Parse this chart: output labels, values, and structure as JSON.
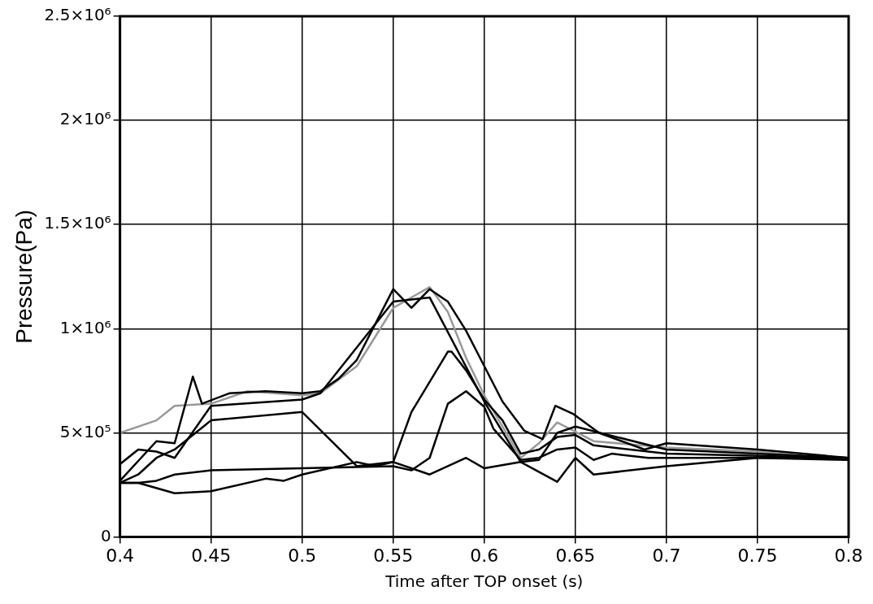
{
  "chart_data": {
    "type": "line",
    "xlabel": "Time after TOP onset (s)",
    "ylabel": "Pressure(Pa)",
    "xlim": [
      0.4,
      0.8
    ],
    "xticks": [
      0.4,
      0.45,
      0.5,
      0.55,
      0.6,
      0.65,
      0.7,
      0.75,
      0.8
    ],
    "ylim": [
      0,
      2500000
    ],
    "yticks": [
      {
        "value": 0,
        "label": "0"
      },
      {
        "value": 500000,
        "label": "5×10⁵"
      },
      {
        "value": 1000000,
        "label": "1×10⁶"
      },
      {
        "value": 1500000,
        "label": "1.5×10⁶"
      },
      {
        "value": 2000000,
        "label": "2×10⁶"
      },
      {
        "value": 2500000,
        "label": "2.5×10⁶"
      }
    ],
    "grid": true,
    "legend": false,
    "marker": "none",
    "line_style": "solid",
    "series": [
      {
        "color": "#000000",
        "x": [
          0.4,
          0.41,
          0.43,
          0.45,
          0.48,
          0.49,
          0.5,
          0.53,
          0.54,
          0.55,
          0.57,
          0.59,
          0.6,
          0.62,
          0.64,
          0.65,
          0.66,
          0.69,
          0.7,
          0.75,
          0.8
        ],
        "values": [
          260000,
          260000,
          210000,
          220000,
          280000,
          270000,
          300000,
          360000,
          340000,
          360000,
          300000,
          380000,
          330000,
          360000,
          265000,
          380000,
          300000,
          330000,
          340000,
          380000,
          380000
        ]
      },
      {
        "color": "#000000",
        "x": [
          0.4,
          0.41,
          0.42,
          0.43,
          0.45,
          0.5,
          0.55,
          0.56,
          0.57,
          0.58,
          0.59,
          0.6,
          0.605,
          0.62,
          0.63,
          0.64,
          0.65,
          0.66,
          0.67,
          0.69,
          0.75,
          0.8
        ],
        "values": [
          260000,
          260000,
          270000,
          300000,
          320000,
          330000,
          340000,
          320000,
          380000,
          640000,
          700000,
          625000,
          520000,
          370000,
          380000,
          420000,
          430000,
          370000,
          400000,
          380000,
          380000,
          370000
        ]
      },
      {
        "color": "#000000",
        "x": [
          0.4,
          0.41,
          0.42,
          0.43,
          0.45,
          0.5,
          0.53,
          0.55,
          0.56,
          0.58,
          0.582,
          0.59,
          0.6,
          0.61,
          0.62,
          0.63,
          0.64,
          0.65,
          0.66,
          0.7,
          0.75,
          0.8
        ],
        "values": [
          260000,
          300000,
          380000,
          420000,
          560000,
          600000,
          340000,
          360000,
          600000,
          890000,
          890000,
          800000,
          660000,
          560000,
          400000,
          420000,
          480000,
          490000,
          440000,
          400000,
          390000,
          380000
        ]
      },
      {
        "color": "#000000",
        "x": [
          0.4,
          0.42,
          0.43,
          0.44,
          0.445,
          0.46,
          0.48,
          0.5,
          0.51,
          0.52,
          0.53,
          0.55,
          0.56,
          0.57,
          0.58,
          0.59,
          0.6,
          0.61,
          0.622,
          0.632,
          0.639,
          0.649,
          0.663,
          0.688,
          0.7,
          0.75,
          0.8
        ],
        "values": [
          270000,
          460000,
          450000,
          770000,
          640000,
          690000,
          700000,
          690000,
          700000,
          760000,
          850000,
          1190000,
          1100000,
          1190000,
          1130000,
          990000,
          820000,
          650000,
          510000,
          470000,
          630000,
          590000,
          500000,
          420000,
          450000,
          420000,
          380000
        ]
      },
      {
        "color": "#000000",
        "x": [
          0.4,
          0.41,
          0.42,
          0.43,
          0.45,
          0.5,
          0.51,
          0.55,
          0.57,
          0.6,
          0.62,
          0.63,
          0.64,
          0.65,
          0.7,
          0.8
        ],
        "values": [
          350000,
          420000,
          410000,
          380000,
          630000,
          660000,
          690000,
          1130000,
          1150000,
          650000,
          360000,
          370000,
          500000,
          530000,
          420000,
          380000
        ]
      },
      {
        "color": "#999999",
        "x": [
          0.4,
          0.42,
          0.43,
          0.45,
          0.47,
          0.5,
          0.51,
          0.53,
          0.55,
          0.57,
          0.58,
          0.59,
          0.6,
          0.62,
          0.63,
          0.64,
          0.66,
          0.7,
          0.75,
          0.8
        ],
        "values": [
          500000,
          560000,
          630000,
          640000,
          700000,
          680000,
          690000,
          820000,
          1100000,
          1200000,
          1080000,
          860000,
          680000,
          380000,
          450000,
          550000,
          460000,
          430000,
          410000,
          370000
        ]
      }
    ]
  }
}
